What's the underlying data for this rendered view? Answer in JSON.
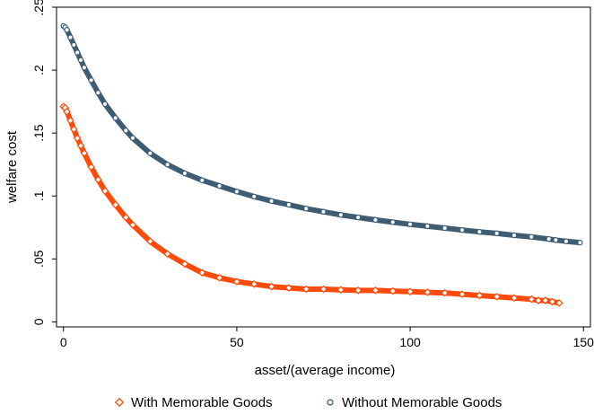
{
  "chart_data": {
    "type": "scatter",
    "xlabel": "asset/(average income)",
    "ylabel": "welfare cost",
    "xlim": [
      -2,
      152
    ],
    "ylim": [
      -0.004,
      0.25
    ],
    "x_ticks": [
      0,
      50,
      100,
      150
    ],
    "x_tick_labels": [
      "0",
      "50",
      "100",
      "150"
    ],
    "y_ticks": [
      0,
      0.05,
      0.1,
      0.15,
      0.2,
      0.25
    ],
    "y_tick_labels": [
      "0",
      ".05",
      ".1",
      ".15",
      ".2",
      ".25"
    ],
    "grid": false,
    "legend_position": "bottom",
    "series": [
      {
        "name": "With Memorable Goods",
        "marker": "diamond",
        "color": "#ff4a0a",
        "x": [
          0,
          0.5,
          1,
          2,
          3,
          4,
          5,
          6,
          8,
          10,
          12,
          15,
          18,
          20,
          25,
          30,
          35,
          40,
          45,
          50,
          55,
          60,
          65,
          70,
          75,
          80,
          85,
          90,
          95,
          100,
          105,
          110,
          115,
          120,
          125,
          130,
          135,
          137,
          139,
          141,
          143
        ],
        "y": [
          0.171,
          0.17,
          0.167,
          0.16,
          0.153,
          0.146,
          0.14,
          0.134,
          0.123,
          0.113,
          0.104,
          0.093,
          0.083,
          0.077,
          0.064,
          0.054,
          0.046,
          0.039,
          0.035,
          0.032,
          0.03,
          0.028,
          0.027,
          0.026,
          0.026,
          0.0255,
          0.025,
          0.025,
          0.0245,
          0.024,
          0.0235,
          0.023,
          0.022,
          0.021,
          0.02,
          0.019,
          0.018,
          0.017,
          0.017,
          0.016,
          0.015
        ]
      },
      {
        "name": "Without Memorable Goods",
        "marker": "circle",
        "color": "#3e5d73",
        "x": [
          0,
          0.5,
          1,
          2,
          3,
          4,
          5,
          6,
          8,
          10,
          12,
          15,
          18,
          20,
          25,
          30,
          35,
          40,
          45,
          50,
          55,
          60,
          65,
          70,
          75,
          80,
          85,
          90,
          95,
          100,
          105,
          110,
          115,
          120,
          125,
          130,
          135,
          140,
          142,
          145,
          149
        ],
        "y": [
          0.235,
          0.234,
          0.232,
          0.226,
          0.22,
          0.214,
          0.208,
          0.202,
          0.192,
          0.182,
          0.173,
          0.162,
          0.152,
          0.146,
          0.134,
          0.125,
          0.118,
          0.1125,
          0.108,
          0.1035,
          0.0995,
          0.096,
          0.093,
          0.09,
          0.0875,
          0.085,
          0.083,
          0.081,
          0.0792,
          0.0775,
          0.076,
          0.0745,
          0.073,
          0.0715,
          0.0703,
          0.0688,
          0.0675,
          0.0658,
          0.065,
          0.064,
          0.063
        ]
      }
    ]
  }
}
